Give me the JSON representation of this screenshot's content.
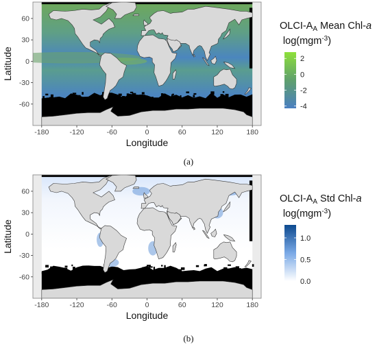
{
  "panels": [
    {
      "id": "a",
      "legend_title_prefix": "OLCI-A",
      "legend_title_sub": "A",
      "legend_title_middle": " Mean Chl-",
      "legend_title_italic": "a",
      "legend_unit": "log(mgm",
      "legend_unit_sup": "-3",
      "legend_unit_close": ")",
      "legend_ticks": [
        "2",
        "0",
        "-2",
        "-4"
      ],
      "legend_range": [
        -4.3,
        2.8
      ],
      "colors": {
        "low": "#4a7fc1",
        "mid": "#5fa06d",
        "high": "#8ee03a"
      },
      "caption": "(a)"
    },
    {
      "id": "b",
      "legend_title_prefix": "OLCI-A",
      "legend_title_sub": "A",
      "legend_title_middle": " Std Chl-",
      "legend_title_italic": "a",
      "legend_unit": "log(mgm",
      "legend_unit_sup": "-3",
      "legend_unit_close": ")",
      "legend_ticks": [
        "1.0",
        "0.5",
        "0.0"
      ],
      "legend_range": [
        0,
        1.3
      ],
      "colors": {
        "low": "#ffffff",
        "mid": "#7aa9e6",
        "high": "#0d4a8f"
      },
      "caption": "(b)"
    }
  ],
  "axes": {
    "xlabel": "Longitude",
    "ylabel": "Latitude",
    "xticks": [
      "-180",
      "-120",
      "-60",
      "0",
      "60",
      "120",
      "180"
    ],
    "yticks": [
      "60",
      "30",
      "0",
      "-30",
      "-60"
    ]
  },
  "map_colors": {
    "land": "#d9d9d9",
    "nodata": "#000000",
    "coast": "#333333"
  }
}
